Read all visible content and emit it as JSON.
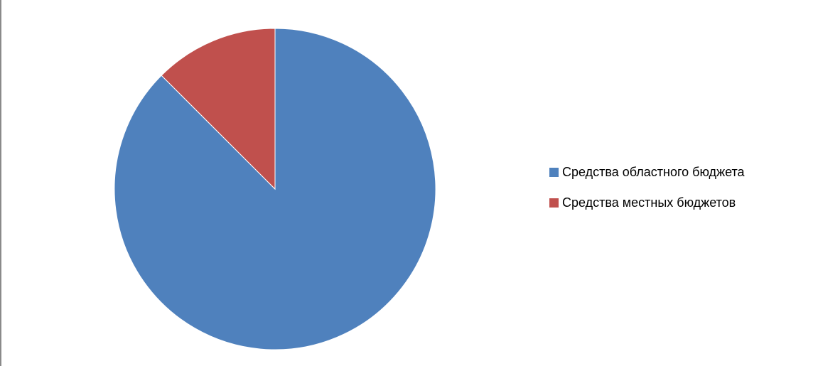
{
  "chart_data": {
    "type": "pie",
    "title": "",
    "series": [
      {
        "name": "Средства областного бюджета",
        "value": 87.5,
        "color": "#4F81BD"
      },
      {
        "name": "Средства местных бюджетов",
        "value": 12.5,
        "color": "#C0504D"
      }
    ],
    "start_angle_deg": 0,
    "direction": "clockwise",
    "legend_position": "right"
  }
}
